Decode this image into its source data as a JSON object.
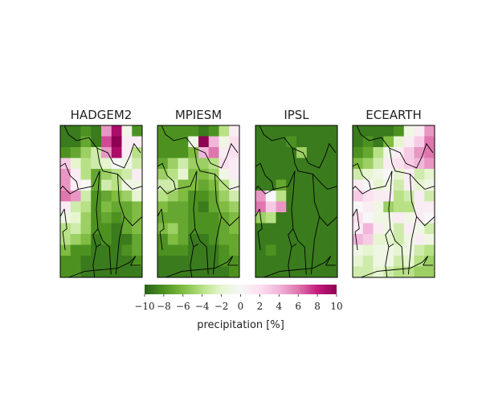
{
  "chart_data": {
    "type": "heatmap",
    "colormap": "PiYG",
    "vmin": -10,
    "vmax": 10,
    "colorbar": {
      "ticks": [
        -10,
        -8,
        -6,
        -4,
        -2,
        0,
        2,
        4,
        6,
        8,
        10
      ],
      "tick_labels": [
        "−10",
        "−8",
        "−6",
        "−4",
        "−2",
        "0",
        "2",
        "4",
        "6",
        "8",
        "10"
      ],
      "label": "precipitation [%]"
    },
    "panels": [
      {
        "title": "HADGEM2",
        "values": [
          [
            -9,
            -9,
            -8,
            -9,
            5,
            9,
            -1,
            -8
          ],
          [
            -9,
            -9,
            -7,
            -9,
            7,
            10,
            1,
            1
          ],
          [
            -8,
            -7,
            -5,
            -3,
            5,
            9,
            1,
            -4
          ],
          [
            3,
            -2,
            -4,
            -3,
            -2,
            0,
            -1,
            -3
          ],
          [
            5,
            1,
            -4,
            -7,
            -5,
            -4,
            -3,
            1
          ],
          [
            5,
            1,
            0,
            -7,
            -3,
            -4,
            -1,
            -1
          ],
          [
            6,
            5,
            -3,
            -8,
            -7,
            -6,
            -5,
            -2
          ],
          [
            1,
            -3,
            -4,
            -8,
            -6,
            -7,
            -7,
            -6
          ],
          [
            -1,
            -2,
            -5,
            -8,
            -7,
            -8,
            -7,
            -6
          ],
          [
            -4,
            -3,
            -5,
            -8,
            -8,
            -9,
            -7,
            -6
          ],
          [
            -4,
            -5,
            -6,
            -9,
            -8,
            -9,
            -9,
            -7
          ],
          [
            -6,
            -8,
            -8,
            -9,
            -9,
            -9,
            -8,
            -7
          ],
          [
            -8,
            -8,
            -9,
            -9,
            -9,
            -9,
            -9,
            -8
          ],
          [
            -8,
            -8,
            -9,
            -9,
            -9,
            -9,
            -9,
            -9
          ]
        ]
      },
      {
        "title": "MPIESM",
        "values": [
          [
            -8,
            -8,
            -8,
            -8,
            -9,
            -8,
            -4,
            1
          ],
          [
            -8,
            -8,
            -8,
            -1,
            10,
            4,
            -1,
            2
          ],
          [
            -8,
            -8,
            -8,
            -6,
            4,
            6,
            1,
            2
          ],
          [
            -7,
            -5,
            -3,
            -5,
            -5,
            -4,
            2,
            1
          ],
          [
            -5,
            -4,
            -2,
            -6,
            -6,
            -5,
            -1,
            1
          ],
          [
            -3,
            -3,
            -6,
            -6,
            -7,
            -6,
            -4,
            -1
          ],
          [
            -4,
            -5,
            -6,
            -8,
            -8,
            -7,
            -5,
            -3
          ],
          [
            -6,
            -7,
            -7,
            -8,
            -9,
            -7,
            -6,
            -5
          ],
          [
            -7,
            -7,
            -7,
            -8,
            -8,
            -8,
            -7,
            -6
          ],
          [
            -6,
            -5,
            -7,
            -8,
            -8,
            -8,
            -7,
            -6
          ],
          [
            -8,
            -6,
            -7,
            -9,
            -9,
            -8,
            -7,
            -7
          ],
          [
            -8,
            -8,
            -8,
            -9,
            -9,
            -9,
            -8,
            -7
          ],
          [
            -9,
            -9,
            -9,
            -9,
            -9,
            -9,
            -8,
            -8
          ],
          [
            -9,
            -9,
            -9,
            -9,
            -9,
            -9,
            -9,
            -8
          ]
        ]
      },
      {
        "title": "IPSL",
        "values": [
          [
            -9,
            -9,
            -9,
            -9,
            -9,
            -9,
            -9,
            -9
          ],
          [
            -9,
            -9,
            -9,
            -8,
            -9,
            -9,
            -9,
            -9
          ],
          [
            -9,
            -9,
            -9,
            -9,
            -5,
            -9,
            -9,
            -9
          ],
          [
            -9,
            -9,
            -9,
            -9,
            -9,
            -9,
            -9,
            -9
          ],
          [
            -9,
            -9,
            -9,
            -9,
            -9,
            -9,
            -9,
            -9
          ],
          [
            -9,
            -9,
            -7,
            -9,
            -9,
            -9,
            -9,
            -9
          ],
          [
            5,
            0,
            -4,
            -9,
            -9,
            -9,
            -9,
            -9
          ],
          [
            6,
            3,
            5,
            -9,
            -9,
            -9,
            -9,
            -9
          ],
          [
            -5,
            -4,
            -9,
            -9,
            -9,
            -9,
            -9,
            -9
          ],
          [
            -9,
            -9,
            -9,
            -9,
            -9,
            -9,
            -9,
            -9
          ],
          [
            -9,
            -9,
            -9,
            -9,
            -9,
            -9,
            -9,
            -9
          ],
          [
            -9,
            -8,
            -9,
            -9,
            -9,
            -9,
            -9,
            -9
          ],
          [
            -9,
            -9,
            -9,
            -9,
            -9,
            -9,
            -9,
            -9
          ],
          [
            -9,
            -9,
            -9,
            -9,
            -9,
            -9,
            -9,
            -9
          ]
        ]
      },
      {
        "title": "ECEARTH",
        "values": [
          [
            -9,
            -9,
            -9,
            -9,
            -8,
            -1,
            1,
            5
          ],
          [
            -9,
            -8,
            -9,
            -6,
            -2,
            1,
            3,
            6
          ],
          [
            -8,
            -7,
            -4,
            -1,
            1,
            3,
            5,
            6
          ],
          [
            -6,
            -5,
            -3,
            1,
            2,
            3,
            4,
            5
          ],
          [
            -3,
            -2,
            -1,
            0,
            -2,
            1,
            -3,
            -2
          ],
          [
            1,
            0,
            -2,
            -1,
            -3,
            1,
            -2,
            -1
          ],
          [
            3,
            2,
            1,
            1,
            -4,
            -3,
            1,
            -3
          ],
          [
            0,
            1,
            -1,
            -5,
            -4,
            -4,
            1,
            1
          ],
          [
            2,
            0,
            -1,
            -1,
            1,
            -1,
            1,
            0
          ],
          [
            1,
            4,
            1,
            -1,
            -3,
            1,
            -1,
            -3
          ],
          [
            4,
            3,
            -2,
            -2,
            -3,
            -1,
            1,
            -1
          ],
          [
            -1,
            -2,
            -1,
            -1,
            -2,
            -1,
            -3,
            -4
          ],
          [
            -2,
            -3,
            -1,
            -1,
            -3,
            -2,
            -4,
            -5
          ],
          [
            -3,
            -3,
            -2,
            -3,
            -4,
            -4,
            -5,
            -5
          ]
        ]
      }
    ]
  }
}
